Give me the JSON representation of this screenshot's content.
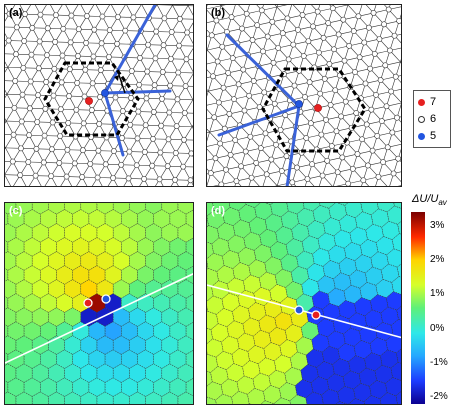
{
  "panels": [
    {
      "label": "(a)",
      "kind": "lattice"
    },
    {
      "label": "(b)",
      "kind": "lattice"
    },
    {
      "label": "(c)",
      "kind": "voronoi"
    },
    {
      "label": "(d)",
      "kind": "voronoi"
    }
  ],
  "legend": {
    "items": [
      {
        "label": "7",
        "color": "#e62020",
        "stroke": "#e62020"
      },
      {
        "label": "6",
        "color": "#ffffff",
        "stroke": "#333333"
      },
      {
        "label": "5",
        "color": "#2255e0",
        "stroke": "#2255e0"
      }
    ]
  },
  "colorbar": {
    "title": "ΔU/U",
    "title_sub": "av",
    "ticks": [
      "3%",
      "2%",
      "1%",
      "0%",
      "-1%",
      "-2%"
    ],
    "range": [
      -2.2,
      3.4
    ],
    "colors": [
      "#7a0000",
      "#ff2a00",
      "#ffd400",
      "#d6ff2a",
      "#5ef07a",
      "#2ee8e8",
      "#25a8ff",
      "#1d3cff",
      "#0c0090"
    ]
  },
  "colors": {
    "burgers_line": "#3a62d8",
    "defect_7": "#e62020",
    "defect_5": "#2255e0",
    "loop": "#000000"
  }
}
